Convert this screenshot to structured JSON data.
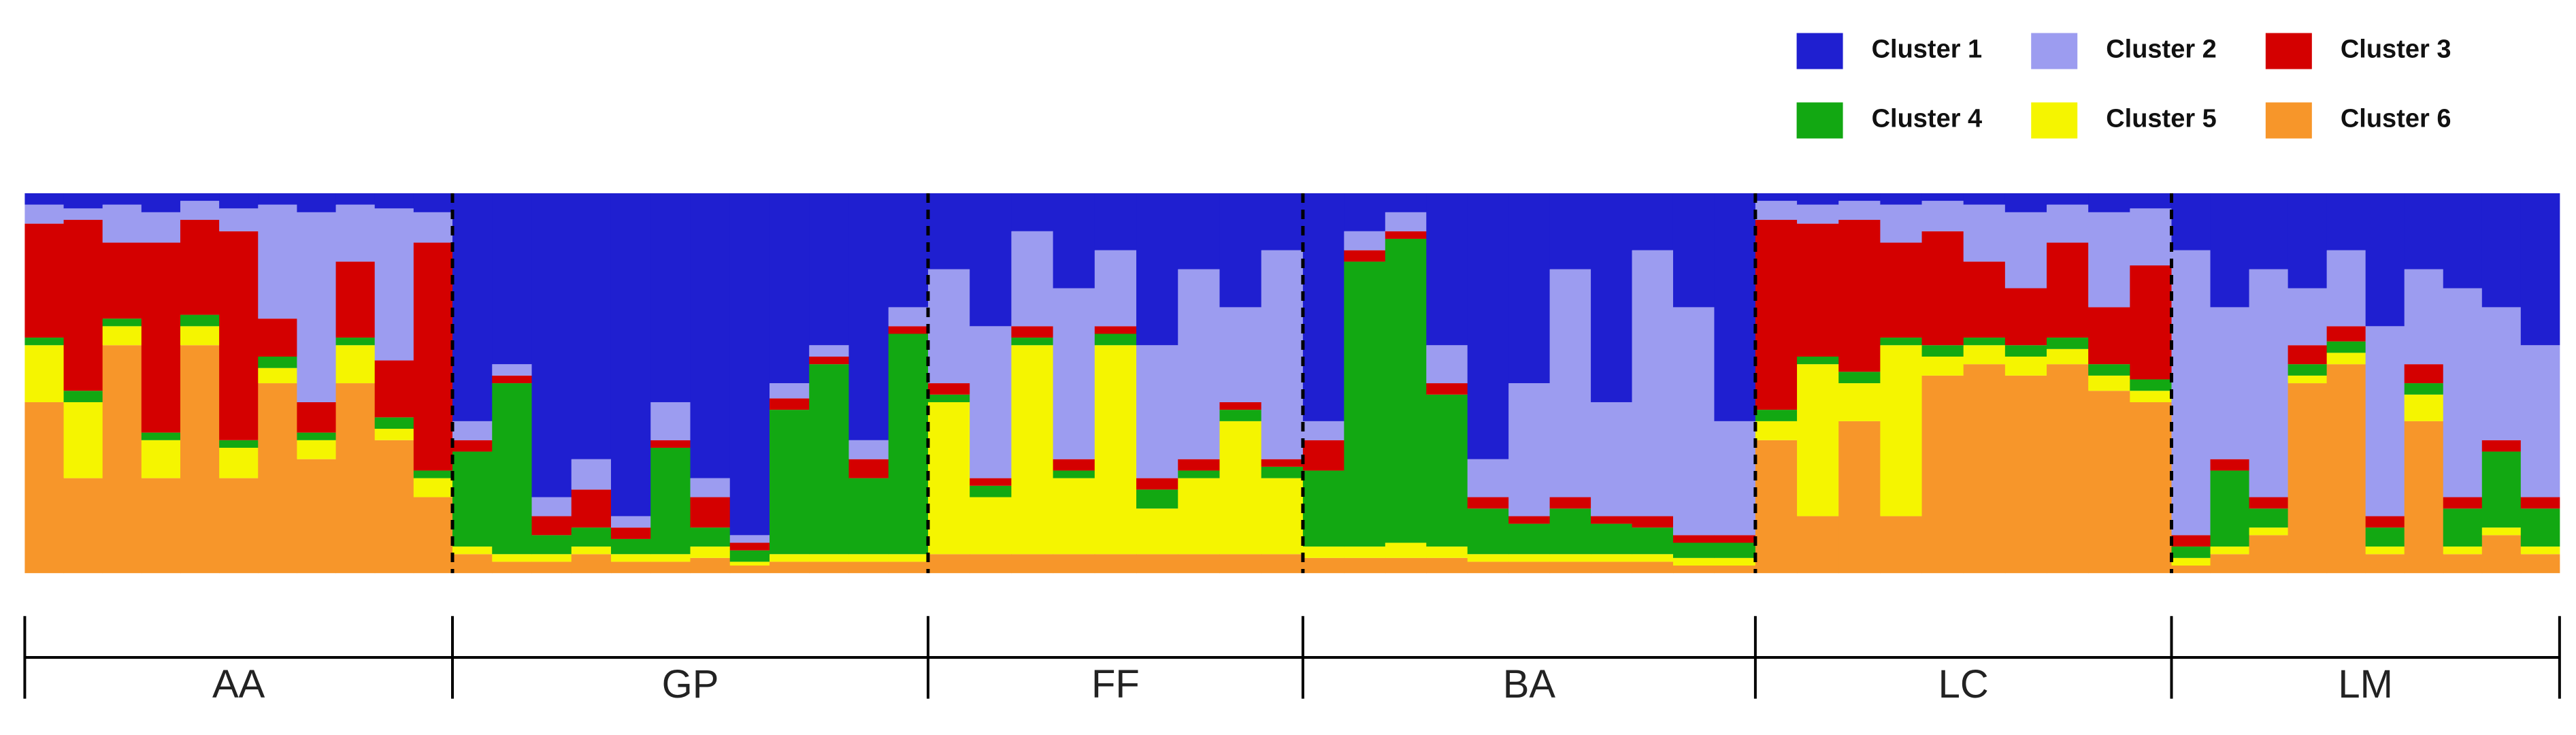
{
  "chart_data": {
    "type": "structure",
    "series": [
      {
        "name": "Cluster 1",
        "color": "#1f1fd0"
      },
      {
        "name": "Cluster 2",
        "color": "#9c9cf0"
      },
      {
        "name": "Cluster 3",
        "color": "#d40000"
      },
      {
        "name": "Cluster 4",
        "color": "#12a812"
      },
      {
        "name": "Cluster 5",
        "color": "#f5f500"
      },
      {
        "name": "Cluster 6",
        "color": "#f7962a"
      }
    ],
    "groups": [
      {
        "label": "AA",
        "values": [
          [
            3,
            5,
            30,
            2,
            15,
            45
          ],
          [
            4,
            3,
            45,
            3,
            20,
            25
          ],
          [
            3,
            10,
            20,
            2,
            5,
            60
          ],
          [
            5,
            8,
            50,
            2,
            10,
            25
          ],
          [
            2,
            5,
            25,
            3,
            5,
            60
          ],
          [
            4,
            6,
            55,
            2,
            8,
            25
          ],
          [
            3,
            30,
            10,
            3,
            4,
            50
          ],
          [
            5,
            50,
            8,
            2,
            5,
            30
          ],
          [
            3,
            15,
            20,
            2,
            10,
            50
          ],
          [
            4,
            40,
            15,
            3,
            3,
            35
          ],
          [
            5,
            8,
            60,
            2,
            5,
            20
          ]
        ]
      },
      {
        "label": "GP",
        "values": [
          [
            60,
            5,
            3,
            25,
            2,
            5
          ],
          [
            45,
            3,
            2,
            45,
            2,
            3
          ],
          [
            80,
            5,
            5,
            5,
            2,
            3
          ],
          [
            70,
            8,
            10,
            5,
            2,
            5
          ],
          [
            85,
            3,
            3,
            4,
            2,
            3
          ],
          [
            55,
            10,
            2,
            28,
            2,
            3
          ],
          [
            75,
            5,
            8,
            5,
            3,
            4
          ],
          [
            90,
            2,
            2,
            3,
            1,
            2
          ],
          [
            50,
            4,
            3,
            38,
            2,
            3
          ],
          [
            40,
            3,
            2,
            50,
            2,
            3
          ],
          [
            65,
            5,
            5,
            20,
            2,
            3
          ],
          [
            30,
            5,
            2,
            58,
            2,
            3
          ]
        ]
      },
      {
        "label": "FF",
        "values": [
          [
            20,
            30,
            3,
            2,
            40,
            5
          ],
          [
            35,
            40,
            2,
            3,
            15,
            5
          ],
          [
            10,
            25,
            3,
            2,
            55,
            5
          ],
          [
            25,
            45,
            3,
            2,
            20,
            5
          ],
          [
            15,
            20,
            2,
            3,
            55,
            5
          ],
          [
            40,
            35,
            3,
            5,
            12,
            5
          ],
          [
            20,
            50,
            3,
            2,
            20,
            5
          ],
          [
            30,
            25,
            2,
            3,
            35,
            5
          ],
          [
            15,
            55,
            2,
            3,
            20,
            5
          ]
        ]
      },
      {
        "label": "BA",
        "values": [
          [
            60,
            5,
            8,
            20,
            3,
            4
          ],
          [
            10,
            5,
            3,
            75,
            3,
            4
          ],
          [
            5,
            5,
            2,
            80,
            4,
            4
          ],
          [
            40,
            10,
            3,
            40,
            3,
            4
          ],
          [
            70,
            10,
            3,
            12,
            2,
            3
          ],
          [
            50,
            35,
            2,
            8,
            2,
            3
          ],
          [
            20,
            60,
            3,
            12,
            2,
            3
          ],
          [
            55,
            30,
            2,
            8,
            2,
            3
          ],
          [
            15,
            70,
            3,
            7,
            2,
            3
          ],
          [
            30,
            60,
            2,
            4,
            2,
            2
          ],
          [
            60,
            30,
            2,
            4,
            2,
            2
          ]
        ]
      },
      {
        "label": "LC",
        "values": [
          [
            2,
            5,
            50,
            3,
            5,
            35
          ],
          [
            3,
            5,
            35,
            2,
            40,
            15
          ],
          [
            2,
            5,
            40,
            3,
            10,
            40
          ],
          [
            3,
            10,
            25,
            2,
            45,
            15
          ],
          [
            2,
            8,
            30,
            3,
            5,
            52
          ],
          [
            3,
            15,
            20,
            2,
            5,
            55
          ],
          [
            5,
            20,
            15,
            3,
            5,
            52
          ],
          [
            3,
            10,
            25,
            3,
            4,
            55
          ],
          [
            5,
            25,
            15,
            3,
            4,
            48
          ],
          [
            4,
            15,
            30,
            3,
            3,
            45
          ]
        ]
      },
      {
        "label": "LM",
        "values": [
          [
            15,
            75,
            3,
            3,
            2,
            2
          ],
          [
            30,
            40,
            3,
            20,
            2,
            5
          ],
          [
            20,
            60,
            3,
            5,
            2,
            10
          ],
          [
            25,
            15,
            5,
            3,
            2,
            50
          ],
          [
            15,
            20,
            4,
            3,
            3,
            55
          ],
          [
            35,
            50,
            3,
            5,
            2,
            5
          ],
          [
            20,
            25,
            5,
            3,
            7,
            40
          ],
          [
            25,
            55,
            3,
            10,
            2,
            5
          ],
          [
            30,
            35,
            3,
            20,
            2,
            10
          ],
          [
            40,
            40,
            3,
            10,
            2,
            5
          ]
        ]
      }
    ]
  }
}
